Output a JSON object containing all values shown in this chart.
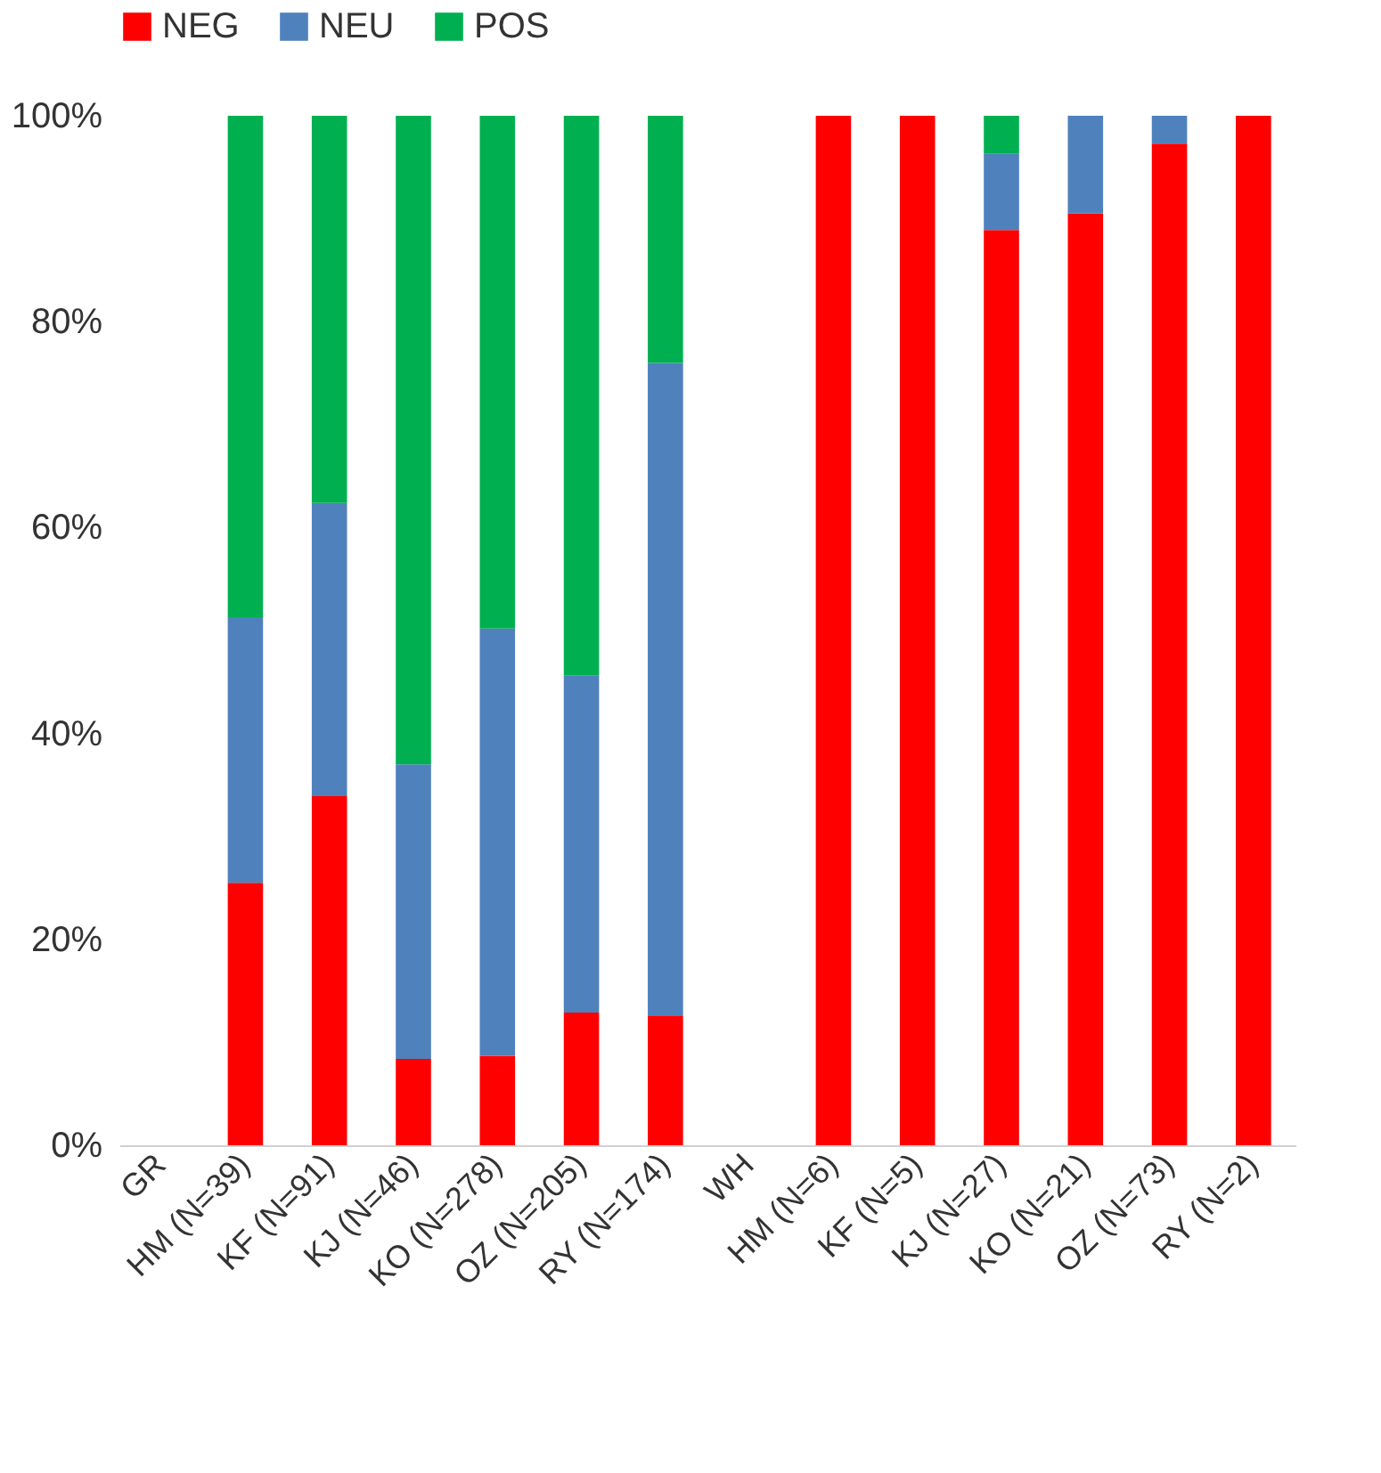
{
  "chart_data": {
    "type": "bar",
    "stacked": true,
    "legend": "top",
    "categories": [
      "GR",
      "HM (N=39)",
      "KF (N=91)",
      "KJ (N=46)",
      "KO (N=278)",
      "OZ (N=205)",
      "RY (N=174)",
      "WH",
      "HM (N=6)",
      "KF (N=5)",
      "KJ (N=27)",
      "KO (N=21)",
      "OZ (N=73)",
      "RY (N=2)"
    ],
    "series": [
      {
        "name": "NEG",
        "color": "#ff0000",
        "values": [
          null,
          25.5,
          33.9,
          8.4,
          8.7,
          12.9,
          12.6,
          null,
          100,
          100,
          88.9,
          90.5,
          97.3,
          100
        ]
      },
      {
        "name": "NEU",
        "color": "#4f81bd",
        "values": [
          null,
          25.8,
          28.5,
          28.6,
          41.5,
          32.7,
          63.4,
          null,
          0,
          0,
          7.4,
          9.5,
          2.7,
          0
        ]
      },
      {
        "name": "POS",
        "color": "#00b050",
        "values": [
          null,
          48.7,
          37.6,
          63.0,
          49.8,
          54.4,
          24.0,
          null,
          0,
          0,
          3.7,
          0,
          0,
          0
        ]
      }
    ],
    "ylim": [
      0,
      100
    ],
    "yticks": [
      {
        "value": 0,
        "label": "0%"
      },
      {
        "value": 20,
        "label": "20%"
      },
      {
        "value": 40,
        "label": "40%"
      },
      {
        "value": 60,
        "label": "60%"
      },
      {
        "value": 80,
        "label": "80%"
      },
      {
        "value": 100,
        "label": "100%"
      }
    ]
  }
}
